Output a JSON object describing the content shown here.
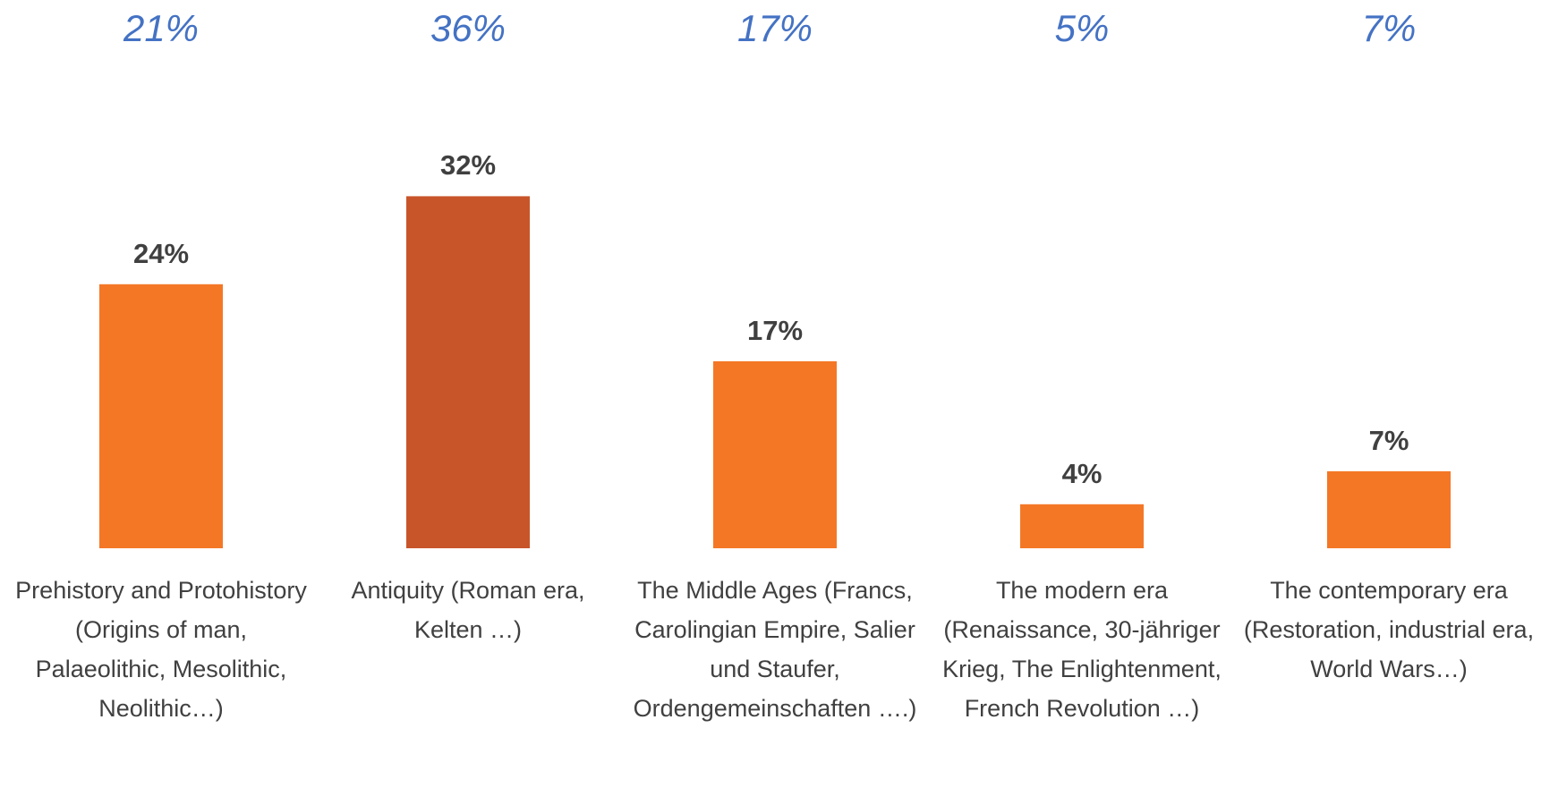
{
  "chart_data": {
    "type": "bar",
    "categories": [
      "Prehistory and Protohistory (Origins of man, Palaeolithic, Mesolithic, Neolithic…)",
      "Antiquity (Roman era, Kelten …)",
      "The Middle Ages (Francs, Carolingian Empire, Salier und Staufer, Ordengemeinschaften ….)",
      "The modern era (Renaissance, 30-jähriger Krieg, The Enlightenment, French Revolution …)",
      "The contemporary era (Restoration, industrial era, World Wars…)"
    ],
    "values": [
      24,
      32,
      17,
      4,
      7
    ],
    "value_labels": [
      "24%",
      "32%",
      "17%",
      "4%",
      "7%"
    ],
    "colors": [
      "#f47726",
      "#c8552a",
      "#f47726",
      "#f47726",
      "#f47726"
    ],
    "comparison_values": [
      21,
      36,
      17,
      5,
      7
    ],
    "comparison_value_labels": [
      "21%",
      "36%",
      "17%",
      "5%",
      "7%"
    ],
    "ylim": [
      0,
      40
    ]
  }
}
